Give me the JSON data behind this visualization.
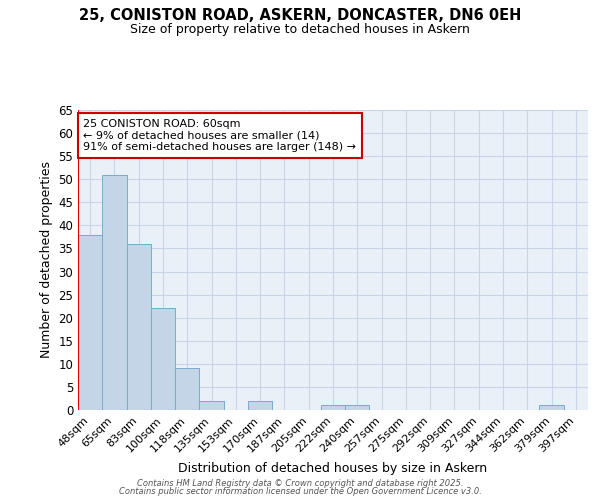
{
  "title_line1": "25, CONISTON ROAD, ASKERN, DONCASTER, DN6 0EH",
  "title_line2": "Size of property relative to detached houses in Askern",
  "xlabel": "Distribution of detached houses by size in Askern",
  "ylabel": "Number of detached properties",
  "bin_labels": [
    "48sqm",
    "65sqm",
    "83sqm",
    "100sqm",
    "118sqm",
    "135sqm",
    "153sqm",
    "170sqm",
    "187sqm",
    "205sqm",
    "222sqm",
    "240sqm",
    "257sqm",
    "275sqm",
    "292sqm",
    "309sqm",
    "327sqm",
    "344sqm",
    "362sqm",
    "379sqm",
    "397sqm"
  ],
  "bar_values": [
    38,
    51,
    36,
    22,
    9,
    2,
    0,
    2,
    0,
    0,
    1,
    1,
    0,
    0,
    0,
    0,
    0,
    0,
    0,
    1,
    0
  ],
  "bar_color": "#c5d5e8",
  "bar_edge_color": "#7aaad0",
  "property_label_line1": "25 CONISTON ROAD: 60sqm",
  "property_label_line2": "← 9% of detached houses are smaller (14)",
  "property_label_line3": "91% of semi-detached houses are larger (148) →",
  "annotation_box_color": "#cc0000",
  "ylim": [
    0,
    65
  ],
  "yticks": [
    0,
    5,
    10,
    15,
    20,
    25,
    30,
    35,
    40,
    45,
    50,
    55,
    60,
    65
  ],
  "grid_color": "#c8d4e8",
  "background_color": "#eaf0f8",
  "footer_line1": "Contains HM Land Registry data © Crown copyright and database right 2025.",
  "footer_line2": "Contains public sector information licensed under the Open Government Licence v3.0."
}
